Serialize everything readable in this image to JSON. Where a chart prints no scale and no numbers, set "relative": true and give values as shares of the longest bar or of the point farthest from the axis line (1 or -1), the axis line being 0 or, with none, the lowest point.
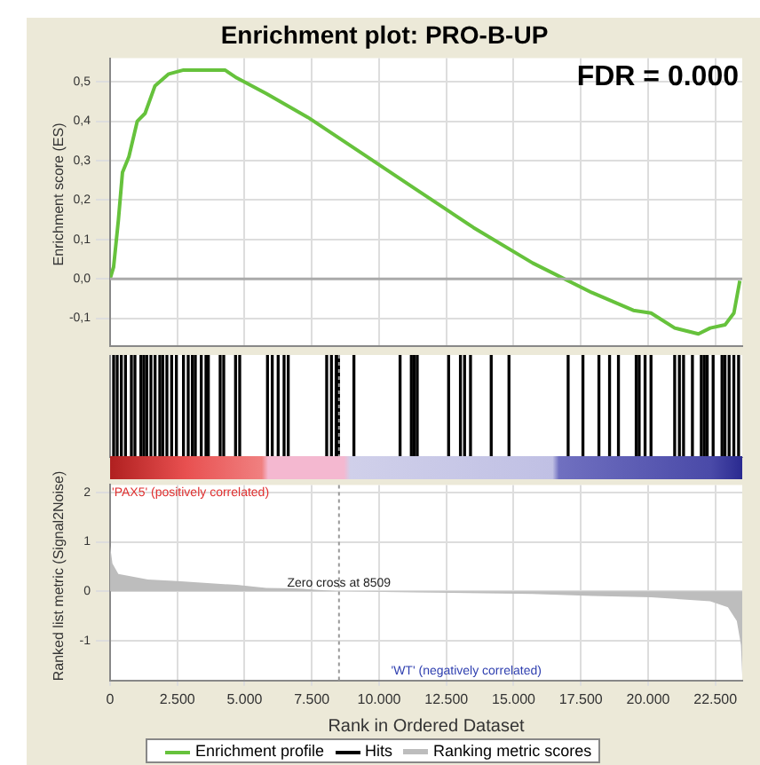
{
  "chart_data": [
    {
      "type": "line",
      "title": "Enrichment plot: PRO-B-UP",
      "ylabel": "Enrichment score (ES)",
      "annotations": [
        "FDR = 0.000"
      ],
      "series": [
        {
          "name": "Enrichment profile",
          "color": "#66c23c",
          "x": [
            0,
            130,
            310,
            460,
            700,
            1010,
            1300,
            1670,
            2180,
            2730,
            4270,
            4710,
            5810,
            7350,
            9110,
            11310,
            13510,
            15710,
            17910,
            19450,
            20110,
            20990,
            21870,
            22310,
            22860,
            23190,
            23410
          ],
          "values": [
            0,
            0.03,
            0.15,
            0.27,
            0.31,
            0.4,
            0.42,
            0.49,
            0.52,
            0.53,
            0.53,
            0.51,
            0.47,
            0.41,
            0.33,
            0.23,
            0.13,
            0.04,
            -0.035,
            -0.08,
            -0.087,
            -0.125,
            -0.14,
            -0.125,
            -0.117,
            -0.087,
            -0.005
          ]
        }
      ],
      "xlim": [
        0,
        23500
      ],
      "xticks": [
        0,
        2500,
        5000,
        7500,
        10000,
        12500,
        15000,
        17500,
        20000,
        22500
      ],
      "ylim": [
        -0.17,
        0.56
      ],
      "yticks": [
        {
          "value": -0.1,
          "label": "-0,1"
        },
        {
          "value": 0,
          "label": "0,0"
        },
        {
          "value": 0.1,
          "label": "0,1"
        },
        {
          "value": 0.2,
          "label": "0,2"
        },
        {
          "value": 0.3,
          "label": "0,3"
        },
        {
          "value": 0.4,
          "label": "0,4"
        },
        {
          "value": 0.5,
          "label": "0,5"
        }
      ],
      "tick_labels": "y",
      "grid": true,
      "legend": "bottom",
      "ref_lines": [
        {
          "axis": "y",
          "value": 0
        }
      ]
    },
    {
      "type": "bar",
      "relative": true,
      "series": [
        {
          "name": "Hits",
          "color": "#000000",
          "x": [
            132,
            264,
            418,
            572,
            792,
            924,
            1144,
            1254,
            1364,
            1518,
            1672,
            1848,
            1958,
            2112,
            2288,
            2464,
            2728,
            2904,
            3058,
            3168,
            3388,
            3564,
            3652,
            4092,
            4224,
            4664,
            4818,
            5852,
            6028,
            6248,
            6468,
            6622,
            8052,
            8228,
            8404,
            8492,
            9064,
            10780,
            11198,
            11308,
            11418,
            12584,
            13024,
            13178,
            13398,
            14168,
            14828,
            17028,
            17578,
            18172,
            18568,
            18898,
            19558,
            19668,
            19888,
            20108,
            20988,
            21164,
            21318,
            21648,
            21978,
            22088,
            22198,
            22418,
            22748,
            22858,
            23012,
            23188,
            23364
          ],
          "values": [
            1,
            1,
            1,
            1,
            1,
            1,
            1,
            1,
            1,
            1,
            1,
            1,
            1,
            1,
            1,
            1,
            1,
            1,
            1,
            1,
            1,
            1,
            1,
            1,
            1,
            1,
            1,
            1,
            1,
            1,
            1,
            1,
            1,
            1,
            1,
            1,
            1,
            1,
            1,
            1,
            1,
            1,
            1,
            1,
            1,
            1,
            1,
            1,
            1,
            1,
            1,
            1,
            1,
            1,
            1,
            1,
            1,
            1,
            1,
            1,
            1,
            1,
            1,
            1,
            1,
            1,
            1,
            1,
            1
          ]
        }
      ],
      "xlim": [
        0,
        23500
      ],
      "tick_labels": false,
      "legend": "bottom",
      "ref_lines": [
        {
          "axis": "x",
          "value": 8509
        }
      ]
    },
    {
      "type": "area",
      "ylabel": "Ranked list metric (Signal2Noise)",
      "xlabel": "Rank in Ordered Dataset",
      "annotations": [
        "'PAX5' (positively correlated)",
        "'WT' (negatively correlated)"
      ],
      "series": [
        {
          "name": "Ranking metric scores",
          "color": "#bdbdbd",
          "x": [
            0,
            88,
            308,
            1408,
            2508,
            4708,
            5808,
            6908,
            8509,
            11308,
            15708,
            17908,
            20108,
            22308,
            22968,
            23298,
            23452,
            23500
          ],
          "values": [
            0.92,
            0.56,
            0.35,
            0.24,
            0.21,
            0.13,
            0.07,
            0.06,
            0,
            -0.02,
            -0.05,
            -0.09,
            -0.12,
            -0.2,
            -0.32,
            -0.6,
            -1.08,
            -1.7
          ]
        }
      ],
      "xlim": [
        0,
        23500
      ],
      "xticks": [
        0,
        {
          "value": 2500,
          "label": "2.500"
        },
        {
          "value": 5000,
          "label": "5.000"
        },
        {
          "value": 7500,
          "label": "7.500"
        },
        {
          "value": 10000,
          "label": "10.000"
        },
        {
          "value": 12500,
          "label": "12.500"
        },
        {
          "value": 15000,
          "label": "15.000"
        },
        {
          "value": 17500,
          "label": "17.500"
        },
        {
          "value": 20000,
          "label": "20.000"
        },
        {
          "value": 22500,
          "label": "22.500"
        }
      ],
      "ylim": [
        -1.8,
        2.15
      ],
      "yticks": [
        -1,
        0,
        1,
        2
      ],
      "grid": true,
      "legend": "bottom",
      "ref_lines": [
        {
          "axis": "x",
          "value": 8509,
          "label": "Zero cross at 8509"
        }
      ]
    }
  ]
}
